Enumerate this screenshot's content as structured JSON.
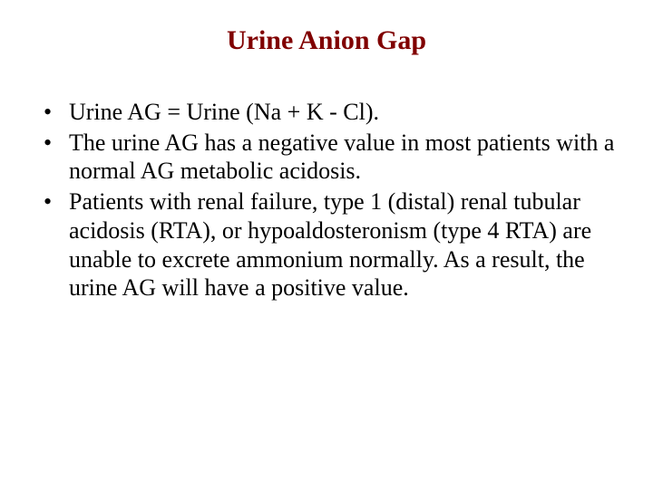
{
  "slide": {
    "title": "Urine Anion Gap",
    "title_color": "#800000",
    "title_fontsize": 30,
    "title_fontweight": "bold",
    "body_fontsize": 26,
    "body_color": "#000000",
    "background_color": "#ffffff",
    "font_family": "Times New Roman",
    "bullets": [
      "Urine AG = Urine (Na + K - Cl).",
      "The urine AG has a negative value in most patients with a normal AG metabolic acidosis.",
      "Patients with renal failure, type 1 (distal) renal tubular acidosis (RTA), or hypoaldosteronism (type 4 RTA) are unable to excrete ammonium normally. As a result, the urine AG will have a positive value."
    ]
  }
}
